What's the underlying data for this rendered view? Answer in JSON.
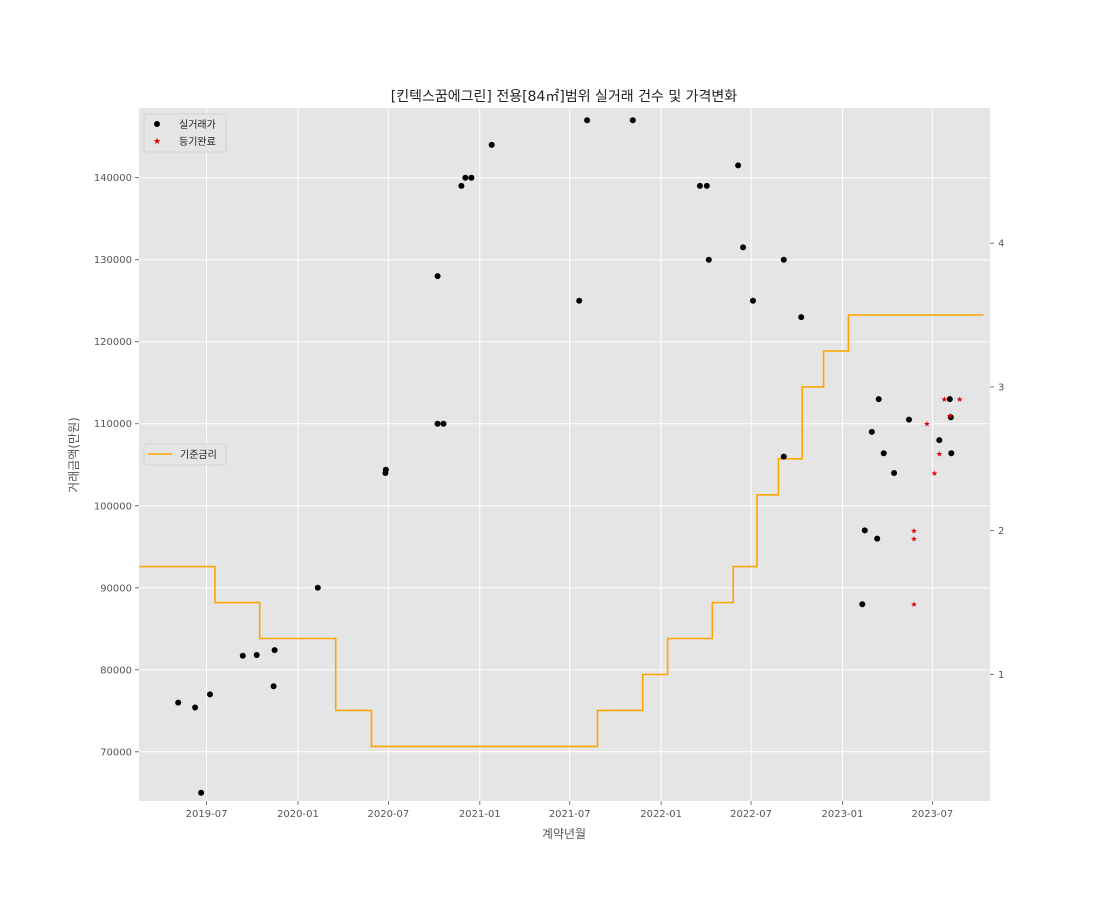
{
  "chart_data": {
    "type": "scatter",
    "title": "[킨텍스꿈에그린] 전용[84㎡]범위 실거래 건수 및 가격변화",
    "xlabel": "계약년월",
    "ylabel": "거래금액(만원)",
    "xlim": [
      "2019-02-15",
      "2023-10-25"
    ],
    "ylim": [
      64000,
      148500
    ],
    "y2lim": [
      0.12,
      4.94
    ],
    "x_ticks": [
      "2019-07",
      "2020-01",
      "2020-07",
      "2021-01",
      "2021-07",
      "2022-01",
      "2022-07",
      "2023-01",
      "2023-07"
    ],
    "y_ticks": [
      70000,
      80000,
      90000,
      100000,
      110000,
      120000,
      130000,
      140000
    ],
    "y2_ticks": [
      1,
      2,
      3,
      4
    ],
    "grid": true,
    "colors": {
      "background": "#e5e5e5",
      "grid": "#ffffff",
      "trades": "#000000",
      "registered": "#dd0000",
      "rate": "#ffa500"
    },
    "legends": [
      {
        "placement": "upper-left",
        "entries": [
          {
            "label": "실거래가",
            "marker": "dot",
            "color": "#000000"
          },
          {
            "label": "등기완료",
            "marker": "star",
            "color": "#dd0000"
          }
        ]
      },
      {
        "placement": "center-left",
        "entries": [
          {
            "label": "기준금리",
            "marker": "line",
            "color": "#ffa500"
          }
        ]
      }
    ],
    "series": [
      {
        "name": "실거래가",
        "type": "scatter",
        "points": [
          [
            "2019-05-05",
            76000
          ],
          [
            "2019-06-08",
            75400
          ],
          [
            "2019-06-20",
            65000
          ],
          [
            "2019-07-08",
            77000
          ],
          [
            "2019-09-12",
            81700
          ],
          [
            "2019-10-10",
            81800
          ],
          [
            "2019-11-13",
            78000
          ],
          [
            "2019-11-15",
            82400
          ],
          [
            "2020-02-10",
            90000
          ],
          [
            "2020-06-25",
            104000
          ],
          [
            "2020-06-26",
            104400
          ],
          [
            "2020-10-08",
            128000
          ],
          [
            "2020-10-08",
            110000
          ],
          [
            "2020-10-20",
            110000
          ],
          [
            "2020-11-25",
            139000
          ],
          [
            "2020-12-03",
            140000
          ],
          [
            "2020-12-15",
            140000
          ],
          [
            "2021-01-25",
            144000
          ],
          [
            "2021-07-20",
            125000
          ],
          [
            "2021-08-05",
            147000
          ],
          [
            "2021-11-05",
            147000
          ],
          [
            "2022-03-20",
            139000
          ],
          [
            "2022-04-03",
            139000
          ],
          [
            "2022-04-07",
            130000
          ],
          [
            "2022-06-05",
            141500
          ],
          [
            "2022-06-15",
            131500
          ],
          [
            "2022-07-05",
            125000
          ],
          [
            "2022-09-05",
            130000
          ],
          [
            "2022-09-05",
            106000
          ],
          [
            "2022-10-10",
            123000
          ],
          [
            "2023-02-10",
            88000
          ],
          [
            "2023-02-15",
            97000
          ],
          [
            "2023-03-01",
            109000
          ],
          [
            "2023-03-12",
            96000
          ],
          [
            "2023-03-15",
            113000
          ],
          [
            "2023-03-25",
            106400
          ],
          [
            "2023-04-15",
            104000
          ],
          [
            "2023-05-15",
            110500
          ],
          [
            "2023-07-15",
            108000
          ],
          [
            "2023-08-05",
            113000
          ],
          [
            "2023-08-07",
            110800
          ],
          [
            "2023-08-08",
            106400
          ]
        ]
      },
      {
        "name": "등기완료",
        "type": "scatter",
        "points": [
          [
            "2023-05-25",
            97000
          ],
          [
            "2023-05-25",
            96000
          ],
          [
            "2023-05-25",
            88000
          ],
          [
            "2023-06-20",
            110000
          ],
          [
            "2023-07-05",
            104000
          ],
          [
            "2023-07-15",
            106400
          ],
          [
            "2023-07-25",
            113000
          ],
          [
            "2023-08-05",
            111000
          ],
          [
            "2023-08-25",
            113000
          ]
        ]
      },
      {
        "name": "기준금리",
        "type": "step",
        "axis": "right",
        "points": [
          [
            "2019-02-15",
            1.75
          ],
          [
            "2019-07-18",
            1.5
          ],
          [
            "2019-10-16",
            1.25
          ],
          [
            "2020-03-17",
            0.75
          ],
          [
            "2020-05-28",
            0.5
          ],
          [
            "2021-08-26",
            0.75
          ],
          [
            "2021-11-25",
            1.0
          ],
          [
            "2022-01-14",
            1.25
          ],
          [
            "2022-04-14",
            1.5
          ],
          [
            "2022-05-26",
            1.75
          ],
          [
            "2022-07-13",
            2.25
          ],
          [
            "2022-08-25",
            2.5
          ],
          [
            "2022-10-12",
            3.0
          ],
          [
            "2022-11-24",
            3.25
          ],
          [
            "2023-01-13",
            3.5
          ],
          [
            "2023-10-12",
            3.5
          ]
        ]
      }
    ]
  }
}
